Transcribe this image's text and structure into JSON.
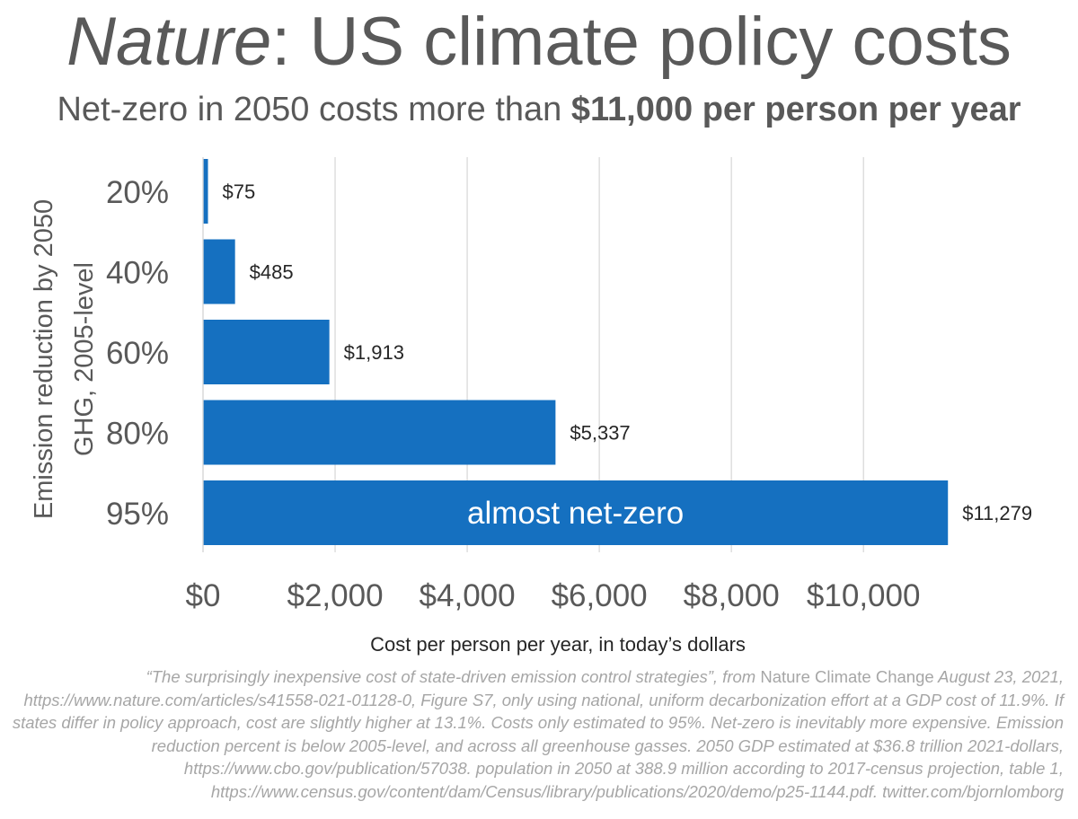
{
  "title": {
    "italic": "Nature",
    "rest": ": US climate policy costs"
  },
  "subtitle": {
    "plain": "Net-zero in 2050 costs more than ",
    "bold": "$11,000 per person per year"
  },
  "colors": {
    "bar": "#1570c0",
    "text": "#595959",
    "grid": "#d9d9d9",
    "footnote": "#a6a6a6"
  },
  "chart_data": {
    "type": "bar",
    "orientation": "horizontal",
    "categories": [
      "20%",
      "40%",
      "60%",
      "80%",
      "95%"
    ],
    "values": [
      75,
      485,
      1913,
      5337,
      11279
    ],
    "value_labels": [
      "$75",
      "$485",
      "$1,913",
      "$5,337",
      "$11,279"
    ],
    "bar_annotations": [
      "",
      "",
      "",
      "",
      "almost net-zero"
    ],
    "xlim": [
      0,
      11500
    ],
    "xticks": [
      0,
      2000,
      4000,
      6000,
      8000,
      10000
    ],
    "xtick_labels": [
      "$0",
      "$2,000",
      "$4,000",
      "$6,000",
      "$8,000",
      "$10,000"
    ],
    "xlabel": "Cost per person per year, in today’s dollars",
    "ylabel_lines": [
      "Emission reduction by 2050",
      "GHG, 2005-level"
    ],
    "grid": true
  },
  "footnote": {
    "segments": [
      {
        "t": "“The surprisingly inexpensive cost of state-driven emission control strategies”, from ",
        "it": true
      },
      {
        "t": "Nature Climate Change",
        "it": false
      },
      {
        "t": " August 23, 2021, https://www.nature.com/articles/s41558-021-01128-0, Figure S7, only using national, uniform decarbonization effort at a GDP cost of 11.9%. If states differ in policy approach, cost are slightly higher at 13.1%. Costs only estimated to 95%. Net-zero is inevitably more expensive. Emission reduction percent is below 2005-level, and across all greenhouse gasses. 2050 GDP estimated at $36.8 trillion 2021-dollars, https://www.cbo.gov/publication/57038. population in 2050 at 388.9 million according to 2017-census projection, table 1, https://www.census.gov/content/dam/Census/library/publications/2020/demo/p25-1144.pdf. twitter.com/bjornlomborg",
        "it": true
      }
    ]
  }
}
